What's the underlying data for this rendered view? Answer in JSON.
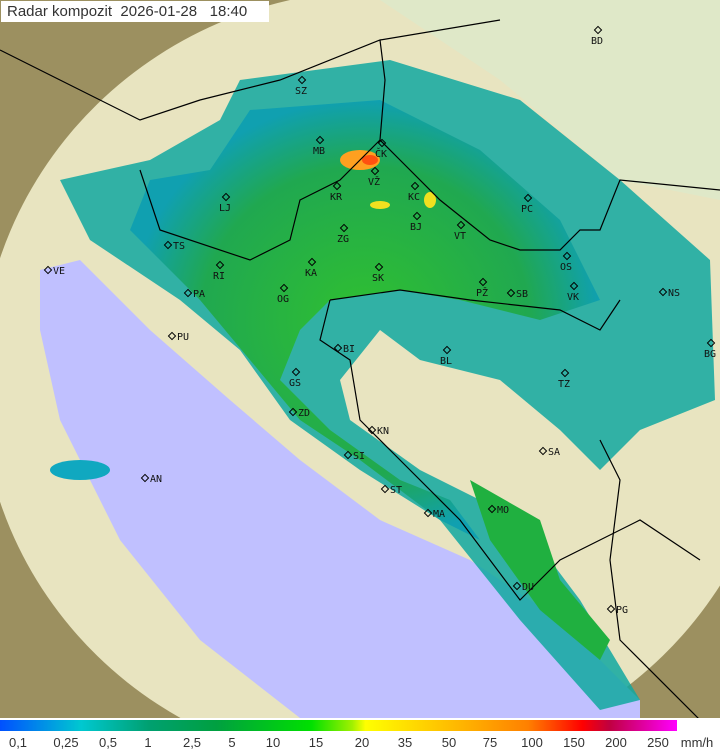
{
  "title": {
    "product": "Radar kompozit",
    "date": "2026-01-28",
    "time": "18:40"
  },
  "legend": {
    "unit": "mm/h",
    "ticks": [
      "0,1",
      "0,25",
      "0,5",
      "1",
      "2,5",
      "5",
      "10",
      "15",
      "20",
      "35",
      "50",
      "75",
      "100",
      "150",
      "200",
      "250"
    ],
    "colors": [
      "#0050ff",
      "#00c8d0",
      "#00a070",
      "#00a040",
      "#00e000",
      "#ffff00",
      "#ffc000",
      "#ff8000",
      "#ff0000",
      "#c00040",
      "#ff00ff"
    ]
  },
  "cities": [
    {
      "code": "BD"
    },
    {
      "code": "SZ"
    },
    {
      "code": "MB"
    },
    {
      "code": "ČK"
    },
    {
      "code": "VŽ"
    },
    {
      "code": "KR"
    },
    {
      "code": "KC"
    },
    {
      "code": "LJ"
    },
    {
      "code": "BJ"
    },
    {
      "code": "VT"
    },
    {
      "code": "PC"
    },
    {
      "code": "TS"
    },
    {
      "code": "ZG"
    },
    {
      "code": "RI"
    },
    {
      "code": "KA"
    },
    {
      "code": "SK"
    },
    {
      "code": "OS"
    },
    {
      "code": "PA"
    },
    {
      "code": "OG"
    },
    {
      "code": "PŽ"
    },
    {
      "code": "SB"
    },
    {
      "code": "VK"
    },
    {
      "code": "NS"
    },
    {
      "code": "PU"
    },
    {
      "code": "BI"
    },
    {
      "code": "BL"
    },
    {
      "code": "BG"
    },
    {
      "code": "GS"
    },
    {
      "code": "TZ"
    },
    {
      "code": "ZD"
    },
    {
      "code": "KN"
    },
    {
      "code": "SA"
    },
    {
      "code": "SI"
    },
    {
      "code": "AN"
    },
    {
      "code": "ST"
    },
    {
      "code": "MA"
    },
    {
      "code": "MO"
    },
    {
      "code": "DU"
    },
    {
      "code": "PG"
    },
    {
      "code": "VE"
    }
  ]
}
